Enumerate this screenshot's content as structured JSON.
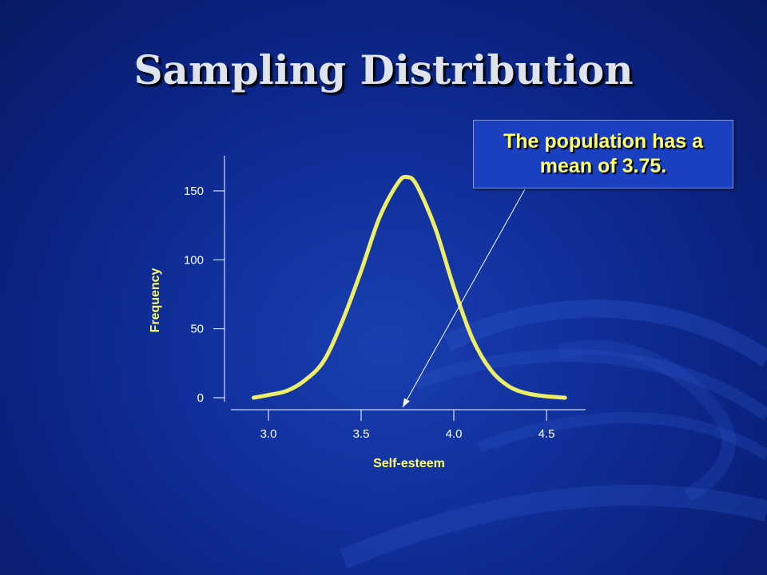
{
  "slide": {
    "title": "Sampling Distribution"
  },
  "callout": {
    "text": "The population has a mean of 3.75.",
    "points_to_x": 3.75
  },
  "colors": {
    "curve": "#eeee66",
    "axis": "#ffffff",
    "axis_title": "#ffff66",
    "callout_text": "#ffff66"
  },
  "chart_data": {
    "type": "line",
    "title": "",
    "xlabel": "Self-esteem",
    "ylabel": "Frequency",
    "xlim": [
      2.9,
      4.65
    ],
    "ylim": [
      0,
      160
    ],
    "x_ticks": [
      3.0,
      3.5,
      4.0,
      4.5
    ],
    "x_tick_labels": [
      "3.0",
      "3.5",
      "4.0",
      "4.5"
    ],
    "y_ticks": [
      0,
      50,
      100,
      150
    ],
    "y_tick_labels": [
      "0",
      "50",
      "100",
      "150"
    ],
    "grid": false,
    "legend": "none",
    "series": [
      {
        "x": [
          2.92,
          3.0,
          3.1,
          3.2,
          3.3,
          3.4,
          3.5,
          3.6,
          3.7,
          3.75,
          3.8,
          3.9,
          4.0,
          4.1,
          4.2,
          4.3,
          4.4,
          4.5,
          4.6
        ],
        "y": [
          0,
          2,
          5,
          13,
          27,
          56,
          92,
          131,
          156,
          160,
          154,
          123,
          80,
          43,
          20,
          8,
          3,
          1,
          0
        ]
      }
    ]
  }
}
